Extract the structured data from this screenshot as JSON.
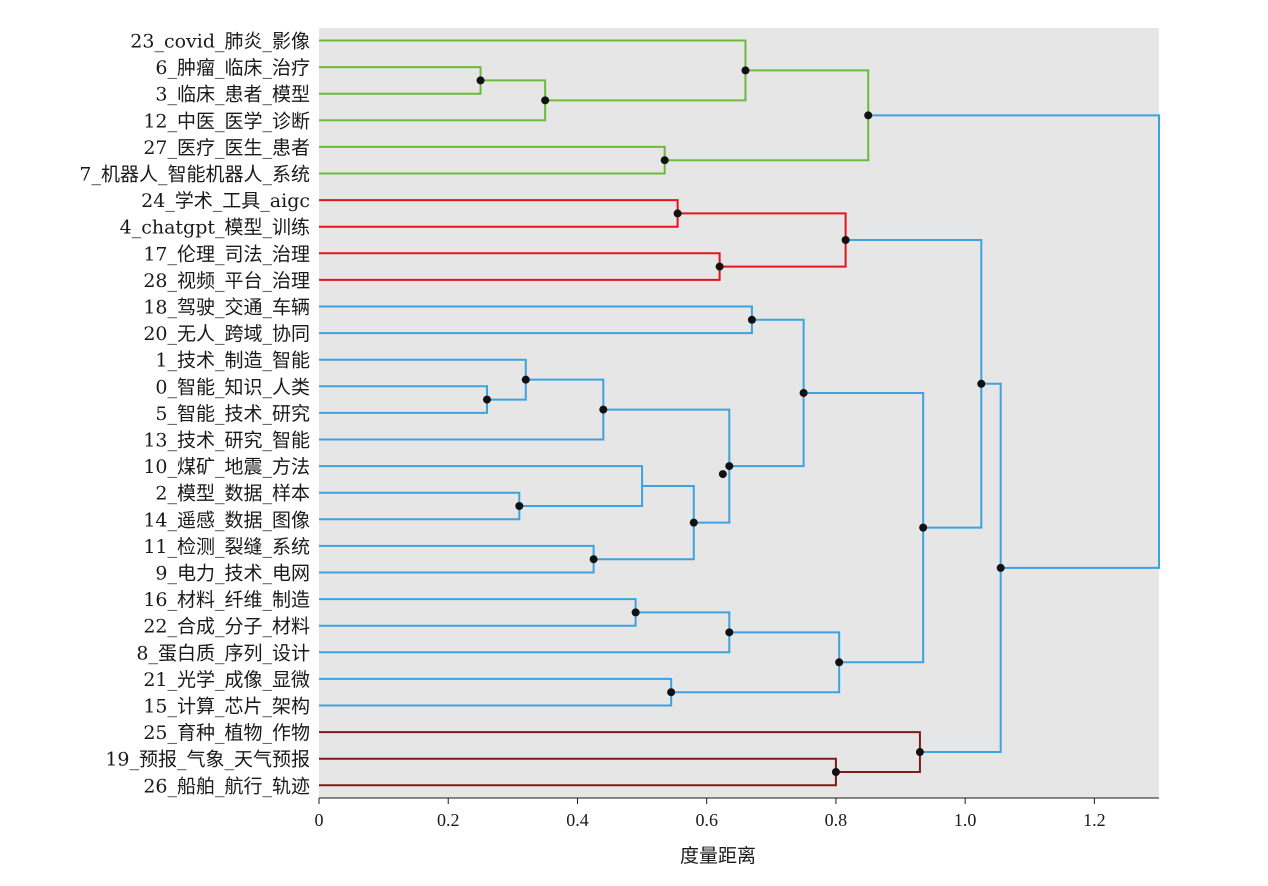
{
  "chart_data": {
    "type": "dendrogram",
    "xlabel": "度量距离",
    "xlim": [
      0,
      1.3
    ],
    "xticks": [
      "0",
      "0.2",
      "0.4",
      "0.6",
      "0.8",
      "1.0",
      "1.2"
    ],
    "xtick_values": [
      0,
      0.2,
      0.4,
      0.6,
      0.8,
      1.0,
      1.2
    ],
    "grid": false,
    "colors": {
      "green": "#6cba3b",
      "red": "#e3151c",
      "blue": "#3da3de",
      "darkred": "#7e1d18",
      "node": "#111111",
      "background": "#e6e6e7"
    },
    "leaves": [
      "23_covid_肺炎_影像",
      "6_肿瘤_临床_治疗",
      "3_临床_患者_模型",
      "12_中医_医学_诊断",
      "27_医疗_医生_患者",
      "7_机器人_智能机器人_系统",
      "24_学术_工具_aigc",
      "4_chatgpt_模型_训练",
      "17_伦理_司法_治理",
      "28_视频_平台_治理",
      "18_驾驶_交通_车辆",
      "20_无人_跨域_协同",
      "1_技术_制造_智能",
      "0_智能_知识_人类",
      "5_智能_技术_研究",
      "13_技术_研究_智能",
      "10_煤矿_地震_方法",
      "2_模型_数据_样本",
      "14_遥感_数据_图像",
      "11_检测_裂缝_系统",
      "9_电力_技术_电网",
      "16_材料_纤维_制造",
      "22_合成_分子_材料",
      "8_蛋白质_序列_设计",
      "21_光学_成像_显微",
      "15_计算_芯片_架构",
      "25_育种_植物_作物",
      "19_预报_气象_天气预报",
      "26_船舶_航行_轨迹"
    ],
    "merges": [
      {
        "left": "L1",
        "right": "L2",
        "height": 0.25,
        "color": "green",
        "dot": true
      },
      {
        "left": "M0",
        "right": "L3",
        "height": 0.35,
        "color": "green",
        "dot": true
      },
      {
        "left": "L0",
        "right": "M1",
        "height": 0.66,
        "color": "green",
        "dot": true
      },
      {
        "left": "L4",
        "right": "L5",
        "height": 0.535,
        "color": "green",
        "dot": true
      },
      {
        "left": "M2",
        "right": "M3",
        "height": 0.85,
        "color": "green",
        "dot": true
      },
      {
        "left": "L6",
        "right": "L7",
        "height": 0.555,
        "color": "red",
        "dot": true
      },
      {
        "left": "L8",
        "right": "L9",
        "height": 0.62,
        "color": "red",
        "dot": true
      },
      {
        "left": "M5",
        "right": "M6",
        "height": 0.815,
        "color": "red",
        "dot": true
      },
      {
        "left": "L10",
        "right": "L11",
        "height": 0.67,
        "color": "blue",
        "dot": true
      },
      {
        "left": "L13",
        "right": "L14",
        "height": 0.26,
        "color": "blue",
        "dot": true
      },
      {
        "left": "L12",
        "right": "M9",
        "height": 0.32,
        "color": "blue",
        "dot": true
      },
      {
        "left": "M10",
        "right": "L15",
        "height": 0.44,
        "color": "blue",
        "dot": true
      },
      {
        "left": "L17",
        "right": "L18",
        "height": 0.31,
        "color": "blue",
        "dot": true
      },
      {
        "left": "L16",
        "right": "M12",
        "height": 0.5,
        "color": "blue",
        "dot": false
      },
      {
        "left": "L19",
        "right": "L20",
        "height": 0.425,
        "color": "blue",
        "dot": true
      },
      {
        "left": "M13",
        "right": "M14",
        "height": 0.58,
        "color": "blue",
        "dot": true
      },
      {
        "left": "M11",
        "right": "M15",
        "height": 0.635,
        "color": "blue",
        "dot": true
      },
      {
        "left": "M8",
        "right": "M16",
        "height": 0.75,
        "color": "blue",
        "dot": true
      },
      {
        "left": "L21",
        "right": "L22",
        "height": 0.49,
        "color": "blue",
        "dot": true
      },
      {
        "left": "M18",
        "right": "L23",
        "height": 0.635,
        "color": "blue",
        "dot": true
      },
      {
        "left": "L24",
        "right": "L25",
        "height": 0.545,
        "color": "blue",
        "dot": true
      },
      {
        "left": "M19",
        "right": "M20",
        "height": 0.805,
        "color": "blue",
        "dot": true
      },
      {
        "left": "M17",
        "right": "M21",
        "height": 0.935,
        "color": "blue",
        "dot": true
      },
      {
        "left": "M7",
        "right": "M22",
        "height": 1.025,
        "color": "blue",
        "dot": true
      },
      {
        "left": "L27",
        "right": "L28",
        "height": 0.8,
        "color": "darkred",
        "dot": true
      },
      {
        "left": "L26",
        "right": "M24",
        "height": 0.93,
        "color": "darkred",
        "dot": true
      },
      {
        "left": "M25",
        "right": "M23",
        "height": 1.055,
        "color": "blue",
        "dot": true
      },
      {
        "left": "M4",
        "right": "M26",
        "height": 1.3,
        "color": "blue",
        "dot": false
      }
    ],
    "extra_points": [
      {
        "x": 0.625,
        "leaf_position": 16.3
      }
    ]
  }
}
